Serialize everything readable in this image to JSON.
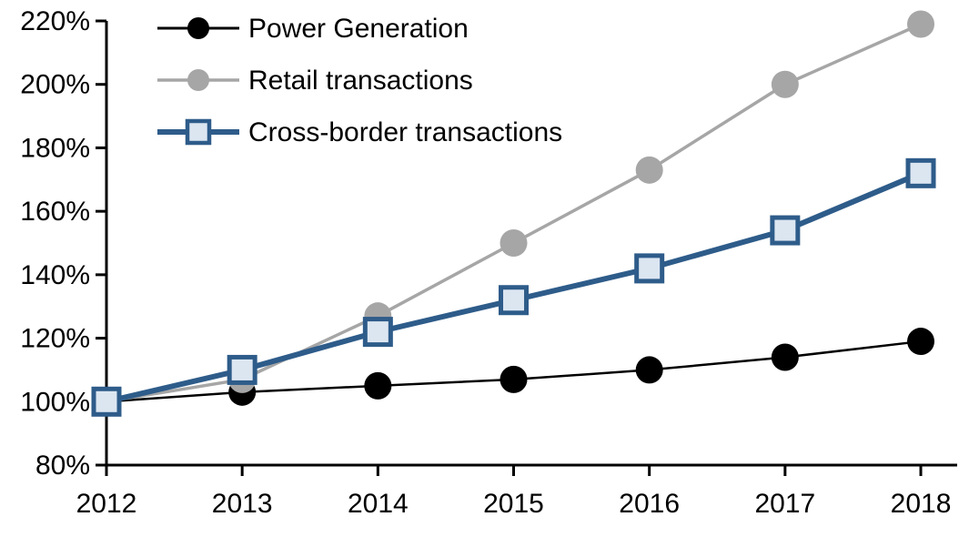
{
  "chart_data": {
    "type": "line",
    "x": [
      2012,
      2013,
      2014,
      2015,
      2016,
      2017,
      2018
    ],
    "xtick_labels": [
      "2012",
      "2013",
      "2014",
      "2015",
      "2016",
      "2017",
      "2018"
    ],
    "series": [
      {
        "name": "Power Generation",
        "values": [
          100,
          103,
          105,
          107,
          110,
          114,
          119
        ],
        "color": "#000000",
        "marker": "circle",
        "marker_fill": "#000000",
        "line_width": 2.5
      },
      {
        "name": "Retail transactions",
        "values": [
          100,
          107,
          127,
          150,
          173,
          200,
          219
        ],
        "color": "#A6A6A6",
        "marker": "circle",
        "marker_fill": "#A6A6A6",
        "line_width": 3.5
      },
      {
        "name": "Cross-border transactions",
        "values": [
          100,
          110,
          122,
          132,
          142,
          154,
          172
        ],
        "color": "#2E5C8A",
        "marker": "square",
        "marker_fill": "#DCE6F1",
        "line_width": 6
      }
    ],
    "ylim": [
      80,
      220
    ],
    "ytick_step": 20,
    "ytick_labels": [
      "80%",
      "100%",
      "120%",
      "140%",
      "160%",
      "180%",
      "200%",
      "220%"
    ],
    "title": "",
    "xlabel": "",
    "ylabel": "",
    "grid": false,
    "legend_position": "top-left",
    "axis_color": "#000000",
    "background_color": "#FFFFFF"
  }
}
